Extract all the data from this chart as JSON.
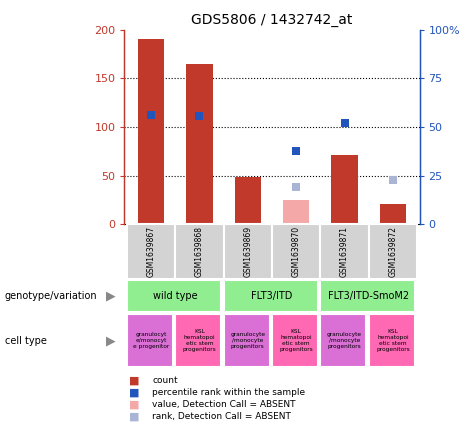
{
  "title": "GDS5806 / 1432742_at",
  "samples": [
    "GSM1639867",
    "GSM1639868",
    "GSM1639869",
    "GSM1639870",
    "GSM1639871",
    "GSM1639872"
  ],
  "count_values": [
    190,
    165,
    48,
    null,
    71,
    21
  ],
  "rank_values": [
    112,
    111,
    null,
    75,
    104,
    null
  ],
  "absent_count_values": [
    null,
    null,
    null,
    25,
    null,
    null
  ],
  "absent_rank_values": [
    null,
    null,
    null,
    38,
    null,
    45
  ],
  "count_color": "#c0392b",
  "rank_color": "#2255bb",
  "absent_count_color": "#f4a9a8",
  "absent_rank_color": "#aab4d4",
  "bar_width": 0.55,
  "ylim_left": [
    0,
    200
  ],
  "ylim_right": [
    0,
    100
  ],
  "yticks_left": [
    0,
    50,
    100,
    150,
    200
  ],
  "yticks_right": [
    0,
    25,
    50,
    75,
    100
  ],
  "ytick_labels_left": [
    "0",
    "50",
    "100",
    "150",
    "200"
  ],
  "ytick_labels_right": [
    "0",
    "25",
    "50",
    "75",
    "100%"
  ],
  "dotted_lines": [
    50,
    100,
    150
  ],
  "gsm_bg_color": "#d3d3d3",
  "geno_color": "#90ee90",
  "cell_colors": [
    "#da70d6",
    "#ff69b4"
  ],
  "geno_groups": [
    {
      "label": "wild type",
      "start": 0,
      "end": 2
    },
    {
      "label": "FLT3/ITD",
      "start": 2,
      "end": 4
    },
    {
      "label": "FLT3/ITD-SmoM2",
      "start": 4,
      "end": 6
    }
  ],
  "cell_groups": [
    {
      "label": "granulocyte/monocyte progenitors",
      "idx": 0,
      "color_idx": 0
    },
    {
      "label": "KSL hematopoietic stem progenitors",
      "idx": 1,
      "color_idx": 1
    },
    {
      "label": "granulocyte/monocyte progenitors",
      "idx": 2,
      "color_idx": 0
    },
    {
      "label": "KSL hematopoietic stem progenitors",
      "idx": 3,
      "color_idx": 1
    },
    {
      "label": "granulocyte/monocyte progenitors",
      "idx": 4,
      "color_idx": 0
    },
    {
      "label": "KSL hematopoietic stem progenitors",
      "idx": 5,
      "color_idx": 1
    }
  ],
  "legend_items": [
    {
      "label": "count",
      "color": "#c0392b"
    },
    {
      "label": "percentile rank within the sample",
      "color": "#2255bb"
    },
    {
      "label": "value, Detection Call = ABSENT",
      "color": "#f4a9a8"
    },
    {
      "label": "rank, Detection Call = ABSENT",
      "color": "#aab4d4"
    }
  ]
}
